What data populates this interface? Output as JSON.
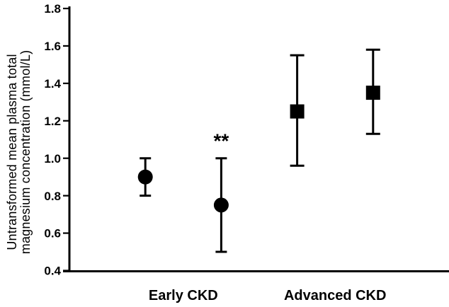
{
  "chart_data": {
    "type": "scatter",
    "subtype": "point-errorbar",
    "title": "",
    "xlabel": "",
    "ylabel": "Untransformed mean plasma total magnesium concentration (mmol/L)",
    "ylabel_lines": [
      "Untransformed mean plasma total",
      "magnesium concentration (mmol/L)"
    ],
    "ylim": [
      0.4,
      1.8
    ],
    "yticks": [
      1.8,
      1.6,
      1.4,
      1.2,
      1.0,
      0.8,
      0.6,
      0.4
    ],
    "grid": false,
    "legend": "none",
    "categories": [
      "Early CKD",
      "Advanced CKD"
    ],
    "groups": [
      {
        "label": "Early CKD",
        "marker": "circle",
        "points": [
          {
            "mean": 0.9,
            "ci_low": 0.8,
            "ci_high": 1.0,
            "annotation": ""
          },
          {
            "mean": 0.75,
            "ci_low": 0.5,
            "ci_high": 1.0,
            "annotation": "**"
          }
        ]
      },
      {
        "label": "Advanced CKD",
        "marker": "square",
        "points": [
          {
            "mean": 1.25,
            "ci_low": 0.96,
            "ci_high": 1.55,
            "annotation": ""
          },
          {
            "mean": 1.35,
            "ci_low": 1.13,
            "ci_high": 1.58,
            "annotation": ""
          }
        ]
      }
    ],
    "colors": {
      "foreground": "#000000",
      "background": "#ffffff"
    }
  }
}
